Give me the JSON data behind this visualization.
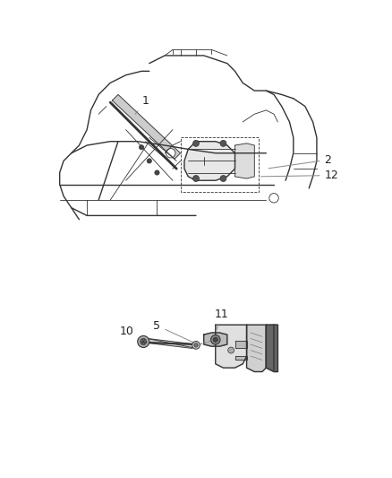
{
  "background_color": "#ffffff",
  "figsize": [
    4.38,
    5.33
  ],
  "dpi": 100,
  "line_color": "#333333",
  "text_color": "#222222",
  "leader_color": "#888888",
  "lw_main": 1.0,
  "lw_thin": 0.6
}
